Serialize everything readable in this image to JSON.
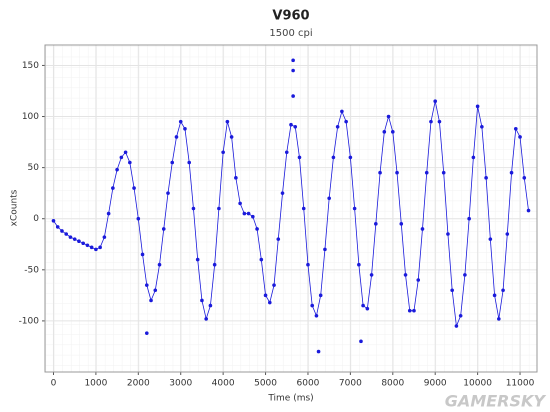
{
  "chart_data": {
    "type": "scatter",
    "title": "V960",
    "subtitle": "1500 cpi",
    "x_label": "Time (ms)",
    "y_label": "xCounts",
    "watermark": "GAMERSKY",
    "color": "#1a1adb",
    "grid": true,
    "xlim": [
      -200,
      11400
    ],
    "ylim": [
      -150,
      170
    ],
    "xticks": [
      0,
      1000,
      2000,
      3000,
      4000,
      5000,
      6000,
      7000,
      8000,
      9000,
      10000,
      11000
    ],
    "yticks": [
      -100,
      -50,
      0,
      50,
      100,
      150
    ],
    "x": [
      0,
      100,
      200,
      300,
      400,
      500,
      600,
      700,
      800,
      900,
      1000,
      1100,
      1200,
      1300,
      1400,
      1500,
      1600,
      1700,
      1800,
      1900,
      2000,
      2100,
      2200,
      2300,
      2400,
      2500,
      2600,
      2700,
      2800,
      2900,
      3000,
      3100,
      3200,
      3300,
      3400,
      3500,
      3600,
      3700,
      3800,
      3900,
      4000,
      4100,
      4200,
      4300,
      4400,
      4500,
      4600,
      4700,
      4800,
      4900,
      5000,
      5100,
      5200,
      5300,
      5400,
      5500,
      5600,
      5700,
      5800,
      5900,
      6000,
      6100,
      6200,
      6300,
      6400,
      6500,
      6600,
      6700,
      6800,
      6900,
      7000,
      7100,
      7200,
      7300,
      7400,
      7500,
      7600,
      7700,
      7800,
      7900,
      8000,
      8100,
      8200,
      8300,
      8400,
      8500,
      8600,
      8700,
      8800,
      8900,
      9000,
      9100,
      9200,
      9300,
      9400,
      9500,
      9600,
      9700,
      9800,
      9900,
      10000,
      10100,
      10200,
      10300,
      10400,
      10500,
      10600,
      10700,
      10800,
      10900,
      11000,
      11100,
      11200
    ],
    "values": [
      -2,
      -8,
      -12,
      -15,
      -18,
      -20,
      -22,
      -24,
      -26,
      -28,
      -30,
      -28,
      -18,
      5,
      30,
      48,
      60,
      65,
      55,
      30,
      0,
      -35,
      -65,
      -80,
      -70,
      -45,
      -10,
      25,
      55,
      80,
      95,
      88,
      55,
      10,
      -40,
      -80,
      -98,
      -85,
      -45,
      10,
      65,
      95,
      80,
      40,
      15,
      5,
      5,
      2,
      -10,
      -40,
      -75,
      -82,
      -65,
      -20,
      25,
      65,
      92,
      90,
      60,
      10,
      -45,
      -85,
      -95,
      -75,
      -30,
      20,
      60,
      90,
      105,
      95,
      60,
      10,
      -45,
      -85,
      -88,
      -55,
      -5,
      45,
      85,
      100,
      85,
      45,
      -5,
      -55,
      -90,
      -90,
      -60,
      -10,
      45,
      95,
      115,
      95,
      45,
      -15,
      -70,
      -105,
      -95,
      -55,
      0,
      60,
      110,
      90,
      40,
      -20,
      -75,
      -98,
      -70,
      -15,
      45,
      88,
      80,
      40,
      8
    ],
    "outliers": {
      "x": [
        2200,
        5650,
        5650,
        5650,
        6250,
        7250
      ],
      "values": [
        -112,
        155,
        145,
        120,
        -130,
        -120
      ]
    }
  }
}
